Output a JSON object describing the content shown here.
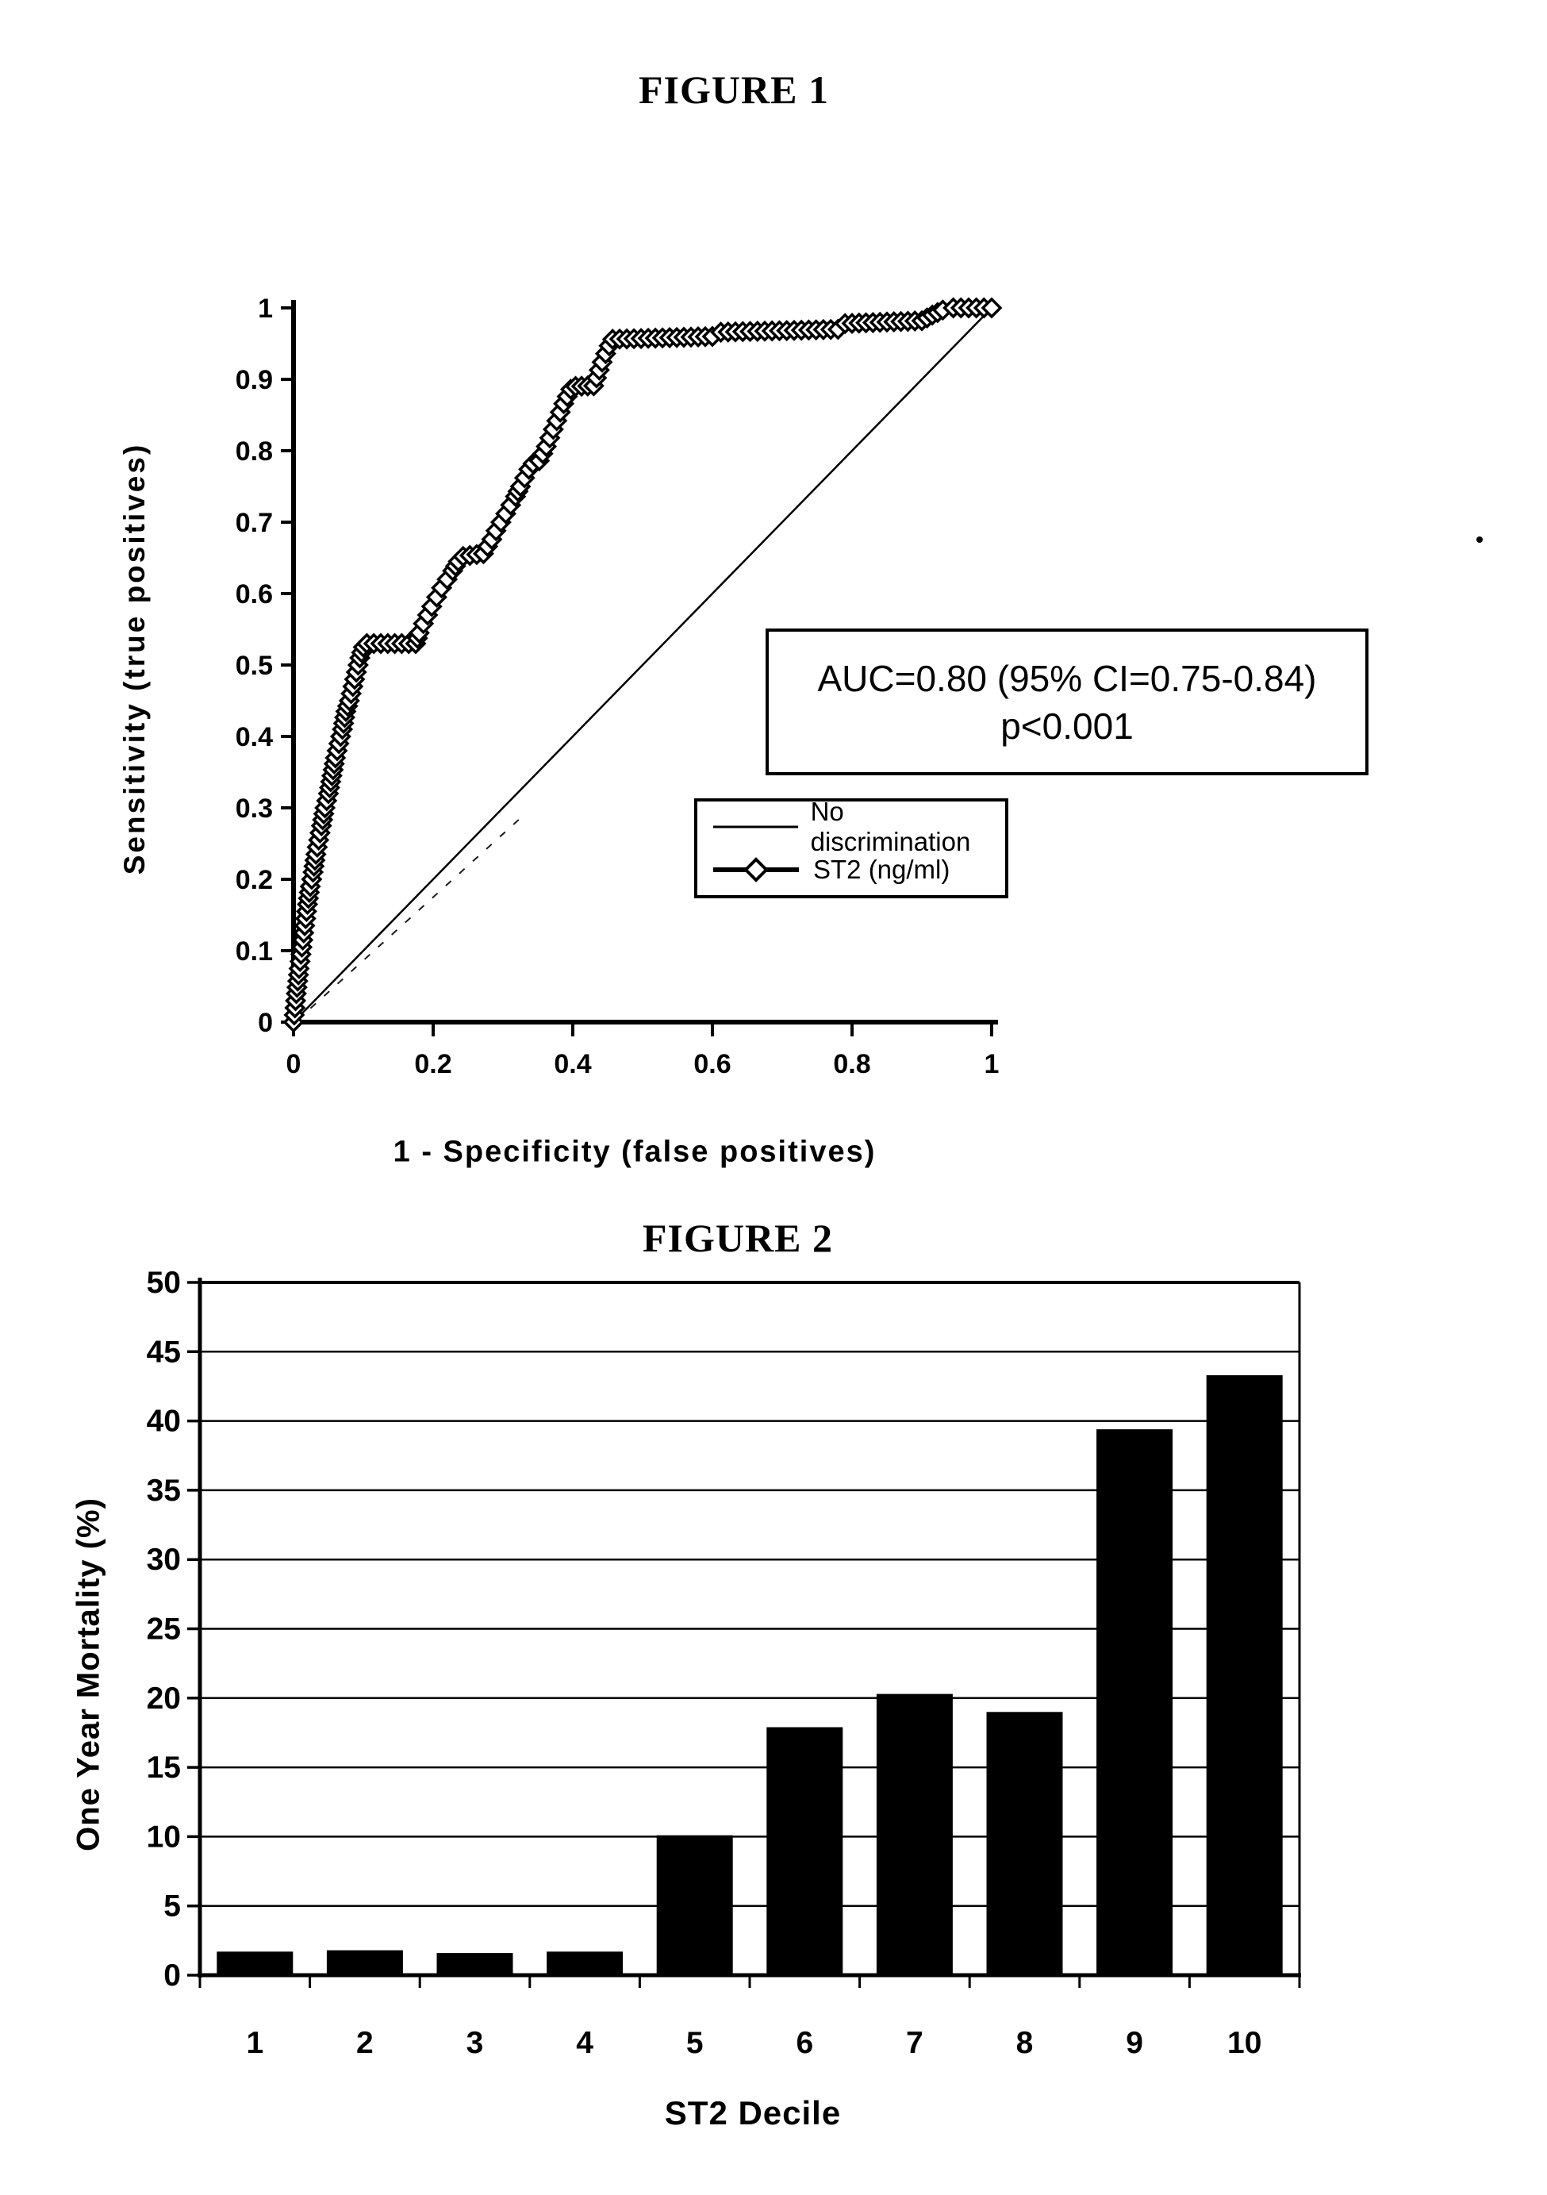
{
  "page": {
    "background": "#ffffff",
    "ink": "#000000"
  },
  "figure1": {
    "title": "FIGURE 1",
    "y_axis_title": "Sensitivity (true positives)",
    "x_axis_title": "1 - Specificity (false positives)",
    "annotation_line1": "AUC=0.80 (95% CI=0.75-0.84)",
    "annotation_line2": "p<0.001",
    "legend_item1": "No discrimination",
    "legend_item2": "ST2 (ng/ml)"
  },
  "figure2": {
    "title": "FIGURE 2",
    "y_axis_title": "One Year Mortality (%)",
    "x_axis_title": "ST2 Decile"
  },
  "chart_data": [
    {
      "type": "line",
      "title": "FIGURE 1",
      "xlabel": "1 - Specificity (false positives)",
      "ylabel": "Sensitivity (true positives)",
      "xlim": [
        0,
        1
      ],
      "ylim": [
        0,
        1
      ],
      "x_ticks": [
        0,
        0.2,
        0.4,
        0.6,
        0.8,
        1
      ],
      "x_tick_labels": [
        "0",
        "0.2",
        "0.4",
        "0.6",
        "0.8",
        "1"
      ],
      "y_ticks": [
        0,
        0.1,
        0.2,
        0.3,
        0.4,
        0.5,
        0.6,
        0.7,
        0.8,
        0.9,
        1
      ],
      "y_tick_labels": [
        "0",
        "0.1",
        "0.2",
        "0.3",
        "0.4",
        "0.5",
        "0.6",
        "0.7",
        "0.8",
        "0.9",
        "1"
      ],
      "grid": false,
      "legend_position": "inside-lower-right",
      "annotation": "AUC=0.80 (95% CI=0.75-0.84) p<0.001",
      "series": [
        {
          "name": "ST2 (ng/ml)",
          "style": "thick-line-with-open-diamond-markers",
          "points": [
            [
              0,
              0
            ],
            [
              0.004,
              0.04
            ],
            [
              0.008,
              0.075
            ],
            [
              0.012,
              0.105
            ],
            [
              0.016,
              0.135
            ],
            [
              0.02,
              0.165
            ],
            [
              0.024,
              0.19
            ],
            [
              0.028,
              0.21
            ],
            [
              0.032,
              0.235
            ],
            [
              0.036,
              0.255
            ],
            [
              0.04,
              0.275
            ],
            [
              0.045,
              0.3
            ],
            [
              0.05,
              0.32
            ],
            [
              0.055,
              0.345
            ],
            [
              0.06,
              0.37
            ],
            [
              0.065,
              0.39
            ],
            [
              0.07,
              0.41
            ],
            [
              0.075,
              0.435
            ],
            [
              0.08,
              0.45
            ],
            [
              0.085,
              0.47
            ],
            [
              0.09,
              0.49
            ],
            [
              0.095,
              0.51
            ],
            [
              0.1,
              0.525
            ],
            [
              0.105,
              0.53
            ],
            [
              0.175,
              0.53
            ],
            [
              0.18,
              0.545
            ],
            [
              0.186,
              0.558
            ],
            [
              0.192,
              0.57
            ],
            [
              0.198,
              0.582
            ],
            [
              0.205,
              0.595
            ],
            [
              0.212,
              0.608
            ],
            [
              0.22,
              0.62
            ],
            [
              0.228,
              0.632
            ],
            [
              0.236,
              0.645
            ],
            [
              0.243,
              0.652
            ],
            [
              0.272,
              0.656
            ],
            [
              0.278,
              0.666
            ],
            [
              0.284,
              0.676
            ],
            [
              0.29,
              0.688
            ],
            [
              0.297,
              0.7
            ],
            [
              0.304,
              0.712
            ],
            [
              0.311,
              0.724
            ],
            [
              0.318,
              0.736
            ],
            [
              0.325,
              0.75
            ],
            [
              0.331,
              0.762
            ],
            [
              0.337,
              0.774
            ],
            [
              0.343,
              0.782
            ],
            [
              0.352,
              0.786
            ],
            [
              0.357,
              0.796
            ],
            [
              0.362,
              0.806
            ],
            [
              0.367,
              0.818
            ],
            [
              0.372,
              0.83
            ],
            [
              0.377,
              0.842
            ],
            [
              0.382,
              0.854
            ],
            [
              0.387,
              0.866
            ],
            [
              0.392,
              0.876
            ],
            [
              0.397,
              0.886
            ],
            [
              0.404,
              0.89
            ],
            [
              0.43,
              0.891
            ],
            [
              0.434,
              0.902
            ],
            [
              0.438,
              0.913
            ],
            [
              0.442,
              0.924
            ],
            [
              0.447,
              0.936
            ],
            [
              0.452,
              0.947
            ],
            [
              0.457,
              0.956
            ],
            [
              0.6,
              0.96
            ],
            [
              0.612,
              0.966
            ],
            [
              0.78,
              0.97
            ],
            [
              0.79,
              0.978
            ],
            [
              0.9,
              0.982
            ],
            [
              0.915,
              0.99
            ],
            [
              0.93,
              0.997
            ],
            [
              0.945,
              1
            ],
            [
              1,
              1
            ]
          ]
        },
        {
          "name": "No discrimination",
          "style": "thin-line",
          "points": [
            [
              0,
              0
            ],
            [
              1,
              1
            ]
          ]
        },
        {
          "name": "reference-dashed-artifact",
          "style": "dashed-thin-line",
          "points": [
            [
              0.005,
              0.0
            ],
            [
              0.33,
              0.29
            ]
          ]
        }
      ]
    },
    {
      "type": "bar",
      "title": "FIGURE 2",
      "xlabel": "ST2 Decile",
      "ylabel": "One Year Mortality (%)",
      "ylim": [
        0,
        50
      ],
      "ytick_step": 5,
      "y_tick_labels": [
        "0",
        "5",
        "10",
        "15",
        "20",
        "25",
        "30",
        "35",
        "40",
        "45",
        "50"
      ],
      "categories": [
        "1",
        "2",
        "3",
        "4",
        "5",
        "6",
        "7",
        "8",
        "9",
        "10"
      ],
      "values": [
        1.7,
        1.8,
        1.6,
        1.7,
        10.1,
        17.9,
        20.3,
        19.0,
        39.4,
        43.3
      ],
      "bar_color": "#000000",
      "grid": true,
      "legend": "none"
    }
  ]
}
